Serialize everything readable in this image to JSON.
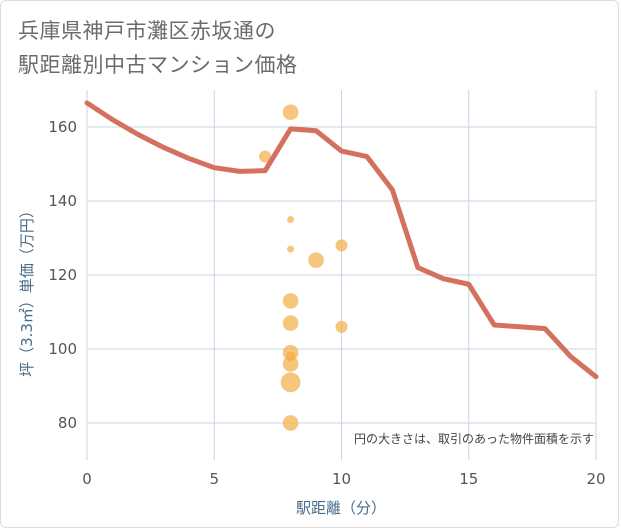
{
  "chart_data": {
    "type": "scatter",
    "title": "兵庫県神戸市灘区赤坂通の\n駅距離別中古マンション価格",
    "xlabel": "駅距離（分）",
    "ylabel": "坪（3.3㎡）単価（万円）",
    "note": "円の大きさは、取引のあった物件面積を示す",
    "xlim": [
      0,
      20
    ],
    "ylim": [
      70,
      170
    ],
    "xticks": [
      "0",
      "5",
      "10",
      "15",
      "20"
    ],
    "yticks": [
      "80",
      "100",
      "120",
      "140",
      "160"
    ],
    "grid": true,
    "colors": {
      "line": "#d4705e",
      "bubble": "#f2b04a",
      "grid": "#c9d6e3"
    },
    "line_series": {
      "x": [
        0,
        1,
        2,
        3,
        4,
        5,
        6,
        7,
        8,
        9,
        10,
        11,
        12,
        13,
        14,
        15,
        16,
        17,
        18,
        19,
        20
      ],
      "y": [
        166.5,
        162,
        158,
        154.5,
        151.5,
        149,
        148,
        148.2,
        159.5,
        159,
        153.5,
        152,
        143,
        122,
        119,
        117.5,
        106.5,
        106,
        105.5,
        98,
        92.5
      ]
    },
    "points": [
      {
        "x": 8,
        "y": 164,
        "size": 5
      },
      {
        "x": 7,
        "y": 152,
        "size": 3
      },
      {
        "x": 8,
        "y": 135,
        "size": 1
      },
      {
        "x": 8,
        "y": 127,
        "size": 1
      },
      {
        "x": 9,
        "y": 124,
        "size": 5
      },
      {
        "x": 10,
        "y": 128,
        "size": 3
      },
      {
        "x": 8,
        "y": 113,
        "size": 5
      },
      {
        "x": 8,
        "y": 107,
        "size": 5
      },
      {
        "x": 10,
        "y": 106,
        "size": 3
      },
      {
        "x": 8,
        "y": 99,
        "size": 5
      },
      {
        "x": 8,
        "y": 98,
        "size": 2
      },
      {
        "x": 8,
        "y": 96,
        "size": 5
      },
      {
        "x": 8,
        "y": 91,
        "size": 8
      },
      {
        "x": 8,
        "y": 80,
        "size": 5
      }
    ]
  }
}
